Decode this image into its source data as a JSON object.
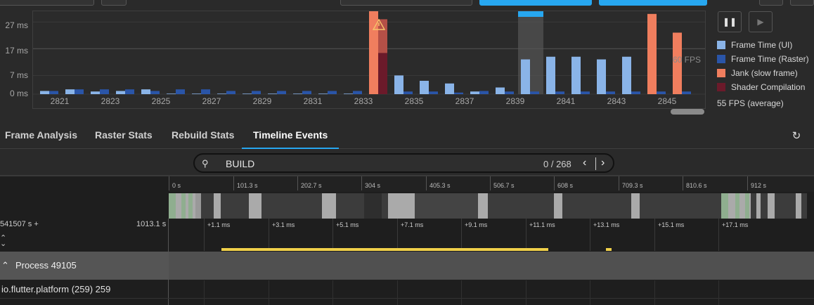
{
  "chart_data": {
    "type": "bar",
    "categories": [
      "2821",
      "2822",
      "2823",
      "2824",
      "2825",
      "2826",
      "2827",
      "2828",
      "2829",
      "2830",
      "2831",
      "2832",
      "2833",
      "2834",
      "2835",
      "2836",
      "2837",
      "2838",
      "2839",
      "2840",
      "2841",
      "2842",
      "2843",
      "2844",
      "2845",
      "2846"
    ],
    "x_tick_labels": [
      "2821",
      "2823",
      "2825",
      "2827",
      "2829",
      "2831",
      "2833",
      "2835",
      "2837",
      "2839",
      "2841",
      "2843",
      "2845"
    ],
    "y_tick_labels": [
      "27 ms",
      "17 ms",
      "7 ms",
      "0 ms"
    ],
    "ylim": [
      0,
      31
    ],
    "target_label": "60 FPS",
    "series": [
      {
        "name": "Frame Time (UI)",
        "values": [
          1.2,
          1.8,
          1,
          1.2,
          1.8,
          0.2,
          0.2,
          0.2,
          0.2,
          0.2,
          0.2,
          0.2,
          0.2,
          31,
          7,
          5,
          4,
          1,
          2.5,
          13,
          14,
          14,
          13,
          14,
          30,
          0.2
        ]
      },
      {
        "name": "Frame Time (Raster)",
        "values": [
          1.2,
          1.8,
          1.8,
          1.8,
          1.2,
          1.8,
          1.8,
          1.2,
          1.2,
          1.2,
          1.2,
          1.2,
          1.2,
          0.2,
          1,
          1,
          0.6,
          1.2,
          1,
          1,
          1,
          1,
          1,
          1,
          1,
          1
        ]
      },
      {
        "name": "Jank (slow frame)",
        "values": [
          0,
          0,
          0,
          0,
          0,
          0,
          0,
          0,
          0,
          0,
          0,
          0,
          0,
          31,
          0,
          0,
          0,
          0,
          0,
          0,
          0,
          0,
          0,
          0,
          30,
          23
        ]
      },
      {
        "name": "Shader Compilation",
        "values": [
          0,
          0,
          0,
          0,
          0,
          0,
          0,
          0,
          0,
          0,
          0,
          0,
          0,
          28,
          0,
          0,
          0,
          0,
          0,
          0,
          0,
          0,
          0,
          0,
          0,
          0
        ]
      }
    ],
    "selected_frame": "2840",
    "legend_position": "right"
  },
  "colors": {
    "ui": "#8ab4e8",
    "raster": "#2a55a8",
    "jank": "#f07e5e",
    "shader": "#6b1a2a",
    "accent": "#27a7f0",
    "selection": "#555555"
  },
  "controls": {
    "pause_icon": "pause-icon",
    "play_icon": "play-icon",
    "pause_glyph": "❚❚",
    "play_glyph": "▶"
  },
  "legend": [
    {
      "label": "Frame Time (UI)",
      "color": "#8ab4e8"
    },
    {
      "label": "Frame Time (Raster)",
      "color": "#2a55a8"
    },
    {
      "label": "Jank (slow frame)",
      "color": "#f07e5e"
    },
    {
      "label": "Shader Compilation",
      "color": "#6b1a2a"
    }
  ],
  "average_fps": "55 FPS (average)",
  "tabs": [
    {
      "label": "Frame Analysis",
      "active": false
    },
    {
      "label": "Raster Stats",
      "active": false
    },
    {
      "label": "Rebuild Stats",
      "active": false
    },
    {
      "label": "Timeline Events",
      "active": true
    }
  ],
  "search": {
    "value": "BUILD",
    "count": "0 / 268"
  },
  "timeline": {
    "overview_ticks": [
      "0 s",
      "101.3 s",
      "202.7 s",
      "304 s",
      "405.3 s",
      "506.7 s",
      "608 s",
      "709.3 s",
      "810.6 s",
      "912 s"
    ],
    "detail_ticks": [
      "+1.1 ms",
      "+3.1 ms",
      "+5.1 ms",
      "+7.1 ms",
      "+9.1 ms",
      "+11.1 ms",
      "+13.1 ms",
      "+15.1 ms",
      "+17.1 ms"
    ],
    "range_start": "541507 s +",
    "range_end": "1013.1 s",
    "process_label": "Process 49105",
    "thread_label": "io.flutter.platform (259) 259"
  }
}
